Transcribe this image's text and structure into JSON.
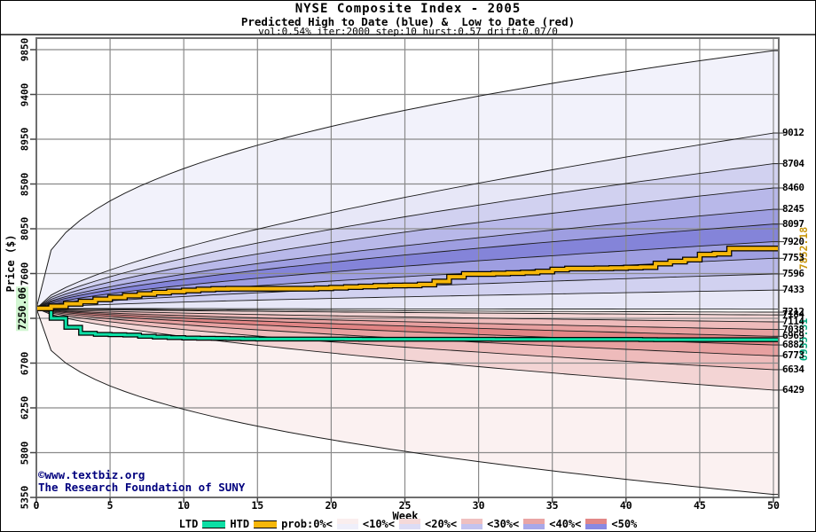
{
  "header": {
    "title": "NYSE Composite Index - 2005",
    "subtitle": "Predicted High to Date (blue) &  Low to Date (red)",
    "params": "vol:0.54% iter:2000 step:10 hurst:0.57 drift:0.07/0"
  },
  "watermark": {
    "line1": "©www.textbiz.org",
    "line2": "The Research Foundation of SUNY",
    "color": "#00007e"
  },
  "chart_data": {
    "type": "area",
    "title": "NYSE Composite Index - 2005",
    "xlabel": "Week",
    "ylabel": "Price ($)",
    "xlim": [
      0,
      50
    ],
    "ylim": [
      5350,
      9966
    ],
    "x_ticks": [
      0,
      5,
      10,
      15,
      20,
      25,
      30,
      35,
      40,
      45,
      50
    ],
    "y_ticks": [
      9850,
      9400,
      8950,
      8500,
      8050,
      7600,
      7150,
      6700,
      6250,
      5800,
      5350
    ],
    "grid": true,
    "start": {
      "week": 0,
      "value": 7250.06,
      "label": "7250.06"
    },
    "envelope": {
      "top_end": 9840,
      "bottom_end": 5380,
      "exponent": 0.38
    },
    "boundary_exponent": 0.66,
    "high_fan": {
      "boundaries": [
        9012,
        8704,
        8460,
        8245,
        8097,
        7920,
        7753,
        7596,
        7433,
        7242
      ],
      "band_colors": [
        "#e7e7f7",
        "#d1d1f0",
        "#b8b8e9",
        "#9e9ee1",
        "#8484d9",
        "#9e9ee1",
        "#b8b8e9",
        "#d1d1f0",
        "#e7e7f7"
      ]
    },
    "low_fan": {
      "boundaries": [
        7212,
        7184,
        7114,
        7038,
        6969,
        6882,
        6773,
        6634,
        6429
      ],
      "band_colors": [
        "#f9e9e9",
        "#f3d4d4",
        "#eebbbb",
        "#e7a0a0",
        "#e18585",
        "#e7a0a0",
        "#eebbbb",
        "#f3d4d4"
      ]
    },
    "outer_fill_top": "#f2f2fb",
    "outer_fill_bottom": "#fbf1f1",
    "right_axis_labels": [
      9012,
      8704,
      8460,
      8245,
      8097,
      7920,
      7753,
      7596,
      7433,
      7212,
      7184,
      7114,
      7038,
      6969,
      6882,
      6773,
      6634,
      6429
    ],
    "htd": {
      "name": "HTD",
      "final": 7852.18,
      "final_label": "7852.18",
      "color": "#f6b70a",
      "values": [
        7250.06,
        7270,
        7296,
        7318,
        7340,
        7360,
        7378,
        7394,
        7408,
        7420,
        7430,
        7440,
        7445,
        7447,
        7447,
        7447,
        7447,
        7447,
        7447,
        7452,
        7458,
        7464,
        7470,
        7476,
        7480,
        7481,
        7490,
        7520,
        7568,
        7596,
        7596,
        7600,
        7605,
        7610,
        7620,
        7640,
        7650,
        7650,
        7652,
        7656,
        7660,
        7665,
        7700,
        7720,
        7740,
        7790,
        7800,
        7852.18,
        7852.18,
        7852.18,
        7852.18
      ]
    },
    "ltd": {
      "name": "LTD",
      "final": 6935.31,
      "final_label": "6935.31",
      "color": "#0cdfa5",
      "values": [
        7250.06,
        7150,
        7060,
        7000,
        6988,
        6985,
        6982,
        6970,
        6962,
        6956,
        6952,
        6950,
        6948,
        6946,
        6944,
        6942,
        6942,
        6942,
        6942,
        6942,
        6942,
        6941,
        6940,
        6940,
        6940,
        6940,
        6940,
        6940,
        6940,
        6940,
        6940,
        6938,
        6938,
        6938,
        6938,
        6938,
        6938,
        6938,
        6938,
        6938,
        6938,
        6936,
        6935.31,
        6935.31,
        6935.31,
        6935.31,
        6935.31,
        6935.31,
        6935.31,
        6935.31,
        6935.31
      ]
    }
  },
  "legend": {
    "items": [
      {
        "type": "line",
        "label": "LTD",
        "color": "#0cdfa5"
      },
      {
        "type": "line",
        "label": "HTD",
        "color": "#f6b70a"
      },
      {
        "type": "text",
        "label": "prob:0%<"
      },
      {
        "type": "swatch",
        "top": "#faeeee",
        "bottom": "#efeffa"
      },
      {
        "type": "text",
        "label": "<10%<"
      },
      {
        "type": "swatch",
        "top": "#f5d9d9",
        "bottom": "#dcdcf5"
      },
      {
        "type": "text",
        "label": "<20%<"
      },
      {
        "type": "swatch",
        "top": "#efc0c0",
        "bottom": "#c3c3ef"
      },
      {
        "type": "text",
        "label": "<30%<"
      },
      {
        "type": "swatch",
        "top": "#e9a5a5",
        "bottom": "#a8a8e9"
      },
      {
        "type": "text",
        "label": "<40%<"
      },
      {
        "type": "swatch",
        "top": "#e28787",
        "bottom": "#8989e2"
      },
      {
        "type": "text",
        "label": "<50%"
      }
    ]
  }
}
